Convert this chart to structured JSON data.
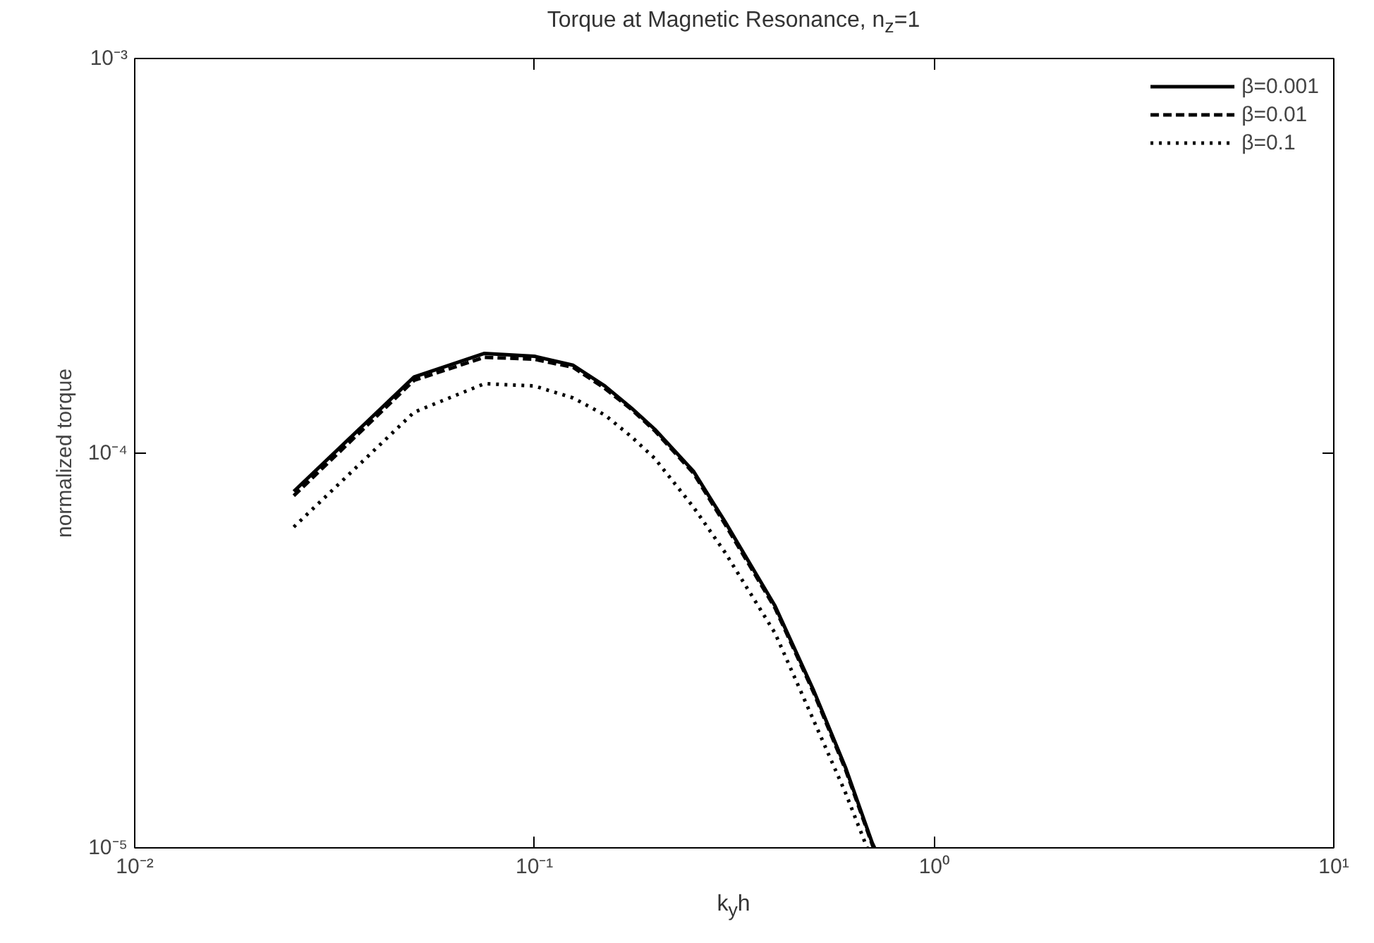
{
  "chart_data": {
    "type": "line",
    "title": "Torque at Magnetic Resonance, n$_{z}$=1",
    "xlabel": "k$_{y}$h",
    "ylabel": "normalized torque",
    "log": "xy",
    "grid": false,
    "legend": "top right",
    "marker": "none",
    "xlim": [
      0.01,
      10
    ],
    "ylim": [
      1e-05,
      0.001
    ],
    "xticks": [
      {
        "value": 0.01,
        "label": "10⁻²"
      },
      {
        "value": 0.1,
        "label": "10⁻¹"
      },
      {
        "value": 1,
        "label": "10⁰"
      },
      {
        "value": 10,
        "label": "10¹"
      }
    ],
    "yticks": [
      {
        "value": 1e-05,
        "label": "10⁻⁵"
      },
      {
        "value": 0.0001,
        "label": "10⁻⁴"
      },
      {
        "value": 0.001,
        "label": "10⁻³"
      }
    ],
    "series": [
      {
        "name": "β=0.001",
        "color": "#000000",
        "line_style": "solid",
        "x": [
          0.025,
          0.05,
          0.075,
          0.1,
          0.125,
          0.15,
          0.175,
          0.2,
          0.25,
          0.3,
          0.4,
          0.5,
          0.6,
          0.7,
          0.71
        ],
        "values": [
          8e-05,
          0.000156,
          0.000179,
          0.000176,
          0.000167,
          0.000148,
          0.00013,
          0.000115,
          9e-05,
          6.7e-05,
          4.1e-05,
          2.5e-05,
          1.6e-05,
          1.03e-05,
          1e-05
        ]
      },
      {
        "name": "β=0.01",
        "color": "#000000",
        "line_style": "dashed",
        "x": [
          0.025,
          0.05,
          0.075,
          0.1,
          0.125,
          0.15,
          0.175,
          0.2,
          0.25,
          0.3,
          0.4,
          0.5,
          0.6,
          0.7,
          0.705
        ],
        "values": [
          7.8e-05,
          0.000153,
          0.000175,
          0.000173,
          0.000165,
          0.000146,
          0.000129,
          0.000114,
          8.9e-05,
          6.6e-05,
          4.05e-05,
          2.47e-05,
          1.58e-05,
          1.02e-05,
          1e-05
        ]
      },
      {
        "name": "β=0.1",
        "color": "#000000",
        "line_style": "dotted",
        "x": [
          0.025,
          0.05,
          0.075,
          0.1,
          0.125,
          0.15,
          0.175,
          0.2,
          0.25,
          0.3,
          0.4,
          0.5,
          0.6,
          0.68
        ],
        "values": [
          6.5e-05,
          0.000127,
          0.00015,
          0.000148,
          0.000138,
          0.000125,
          0.00011,
          9.7e-05,
          7.3e-05,
          5.6e-05,
          3.5e-05,
          2.1e-05,
          1.38e-05,
          1e-05
        ]
      }
    ]
  }
}
